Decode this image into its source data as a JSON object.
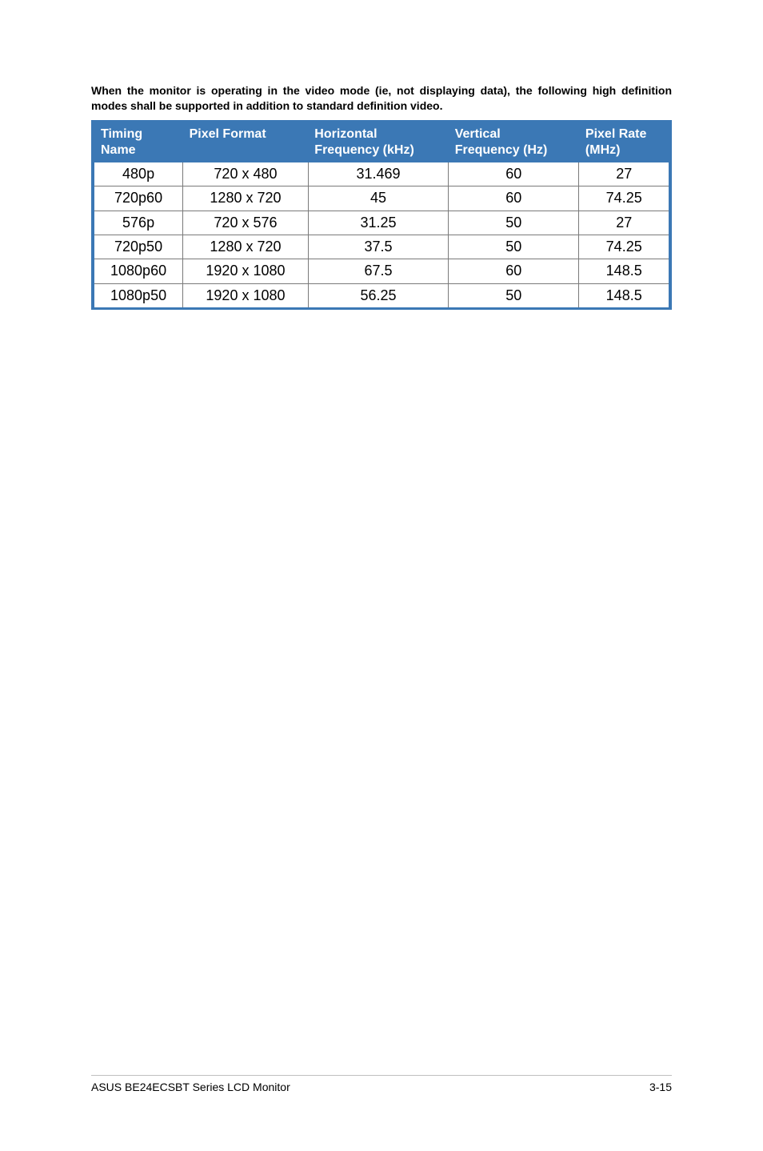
{
  "intro_text": "When the monitor is operating in the video mode (ie, not displaying data), the following high definition modes shall be supported in addition to standard definition video.",
  "table": {
    "headers": [
      "Timing Name",
      "Pixel Format",
      "Horizontal Frequency (kHz)",
      "Vertical Frequency (Hz)",
      "Pixel Rate (MHz)"
    ],
    "header_line1": [
      "Timing Name",
      "Pixel Format",
      "Horizontal",
      "Vertical",
      "Pixel Rate"
    ],
    "header_line2": [
      "",
      "",
      "Frequency (kHz)",
      "Frequency (Hz)",
      "(MHz)"
    ],
    "rows": [
      [
        "480p",
        "720 x 480",
        "31.469",
        "60",
        "27"
      ],
      [
        "720p60",
        "1280 x 720",
        "45",
        "60",
        "74.25"
      ],
      [
        "576p",
        "720 x 576",
        "31.25",
        "50",
        "27"
      ],
      [
        "720p50",
        "1280 x 720",
        "37.5",
        "50",
        "74.25"
      ],
      [
        "1080p60",
        "1920 x 1080",
        "67.5",
        "60",
        "148.5"
      ],
      [
        "1080p50",
        "1920 x 1080",
        "56.25",
        "50",
        "148.5"
      ]
    ],
    "header_bg": "#3b78b5",
    "header_text_color": "#ffffff",
    "border_color": "#3b78b5",
    "cell_border_color": "#7a7a7a",
    "body_fontsize": 18,
    "header_fontsize": 16
  },
  "footer": {
    "left": "ASUS BE24ECSBT Series LCD Monitor",
    "right": "3-15",
    "divider_color": "#bfbfbf"
  },
  "page_bg": "#ffffff"
}
